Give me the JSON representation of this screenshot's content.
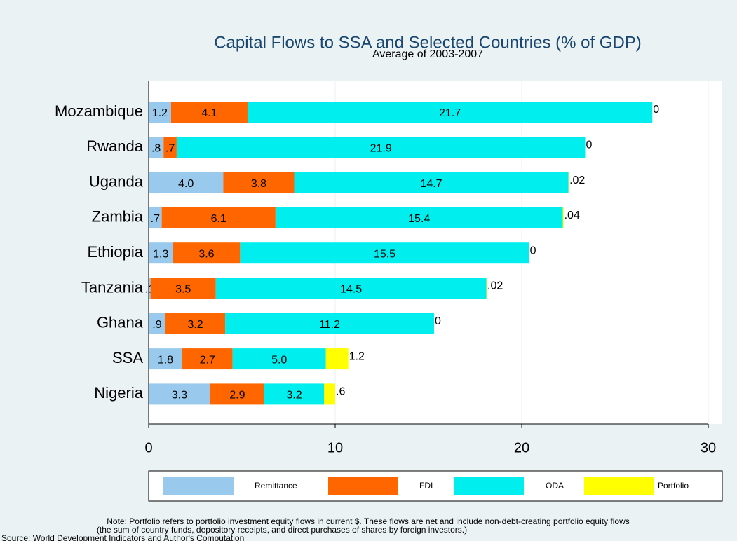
{
  "chart_data": {
    "type": "stacked-bar-horizontal",
    "title": "Capital Flows to SSA and Selected Countries (% of GDP)",
    "subtitle": "Average of 2003-2007",
    "categories": [
      "Mozambique",
      "Rwanda",
      "Uganda",
      "Zambia",
      "Ethiopia",
      "Tanzania",
      "Ghana",
      "SSA",
      "Nigeria"
    ],
    "series": [
      {
        "name": "Remittance",
        "color": "#99c9ec",
        "values": [
          1.2,
          0.8,
          4.0,
          0.7,
          1.3,
          0.1,
          0.9,
          1.8,
          3.3
        ],
        "value_labels": [
          "1.2",
          ".8",
          "4.0",
          ".7",
          "1.3",
          ".1",
          ".9",
          "1.8",
          "3.3"
        ]
      },
      {
        "name": "FDI",
        "color": "#ff6600",
        "values": [
          4.1,
          0.7,
          3.8,
          6.1,
          3.6,
          3.5,
          3.2,
          2.7,
          2.9
        ],
        "value_labels": [
          "4.1",
          ".7",
          "3.8",
          "6.1",
          "3.6",
          "3.5",
          "3.2",
          "2.7",
          "2.9"
        ]
      },
      {
        "name": "ODA",
        "color": "#00eeee",
        "values": [
          21.7,
          21.9,
          14.7,
          15.4,
          15.5,
          14.5,
          11.2,
          5.0,
          3.2
        ],
        "value_labels": [
          "21.7",
          "21.9",
          "14.7",
          "15.4",
          "15.5",
          "14.5",
          "11.2",
          "5.0",
          "3.2"
        ]
      },
      {
        "name": "Portfolio",
        "color": "#ffff00",
        "values": [
          0,
          0,
          0.02,
          0.04,
          0,
          0.02,
          0,
          1.2,
          0.6
        ],
        "value_labels": [
          "0",
          "0",
          ".02",
          ".04",
          "0",
          ".02",
          "0",
          "1.2",
          ".6"
        ]
      }
    ],
    "xlim": [
      0,
      30.75
    ],
    "xticks": [
      0,
      10,
      20,
      30
    ],
    "grid": true,
    "notes": [
      "Note: Portfolio refers to portfolio investment equity flows in current $. These flows are net and include non-debt-creating portfolio equity flows",
      "(the sum of country funds, depository receipts, and direct purchases of shares by foreign investors.)",
      "Source: World Development Indicators and Author's Computation"
    ]
  }
}
